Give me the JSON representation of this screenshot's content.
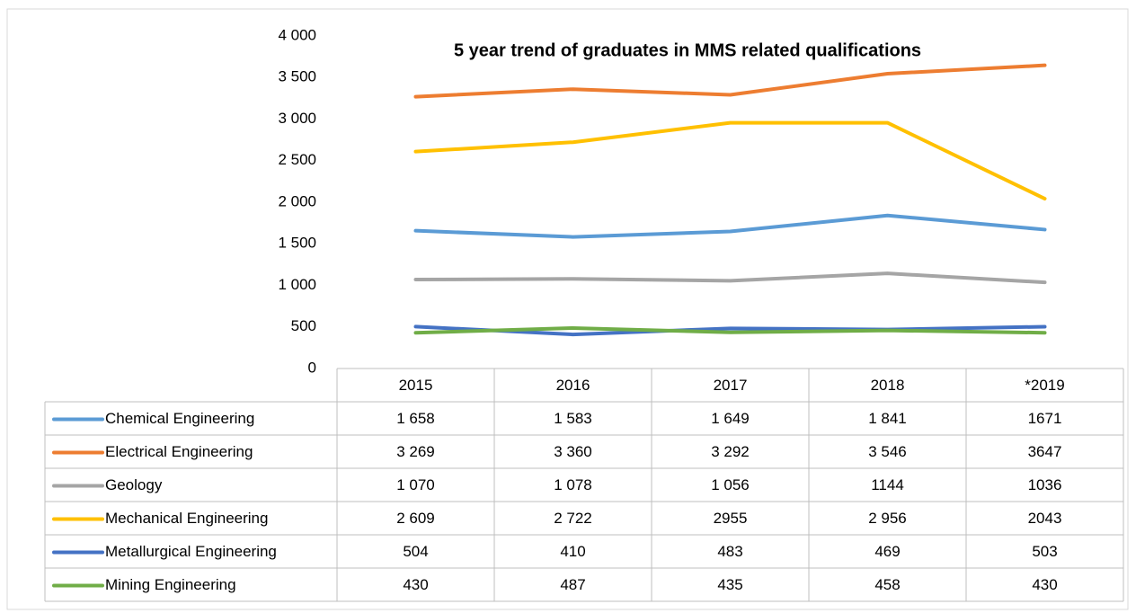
{
  "chart_data": {
    "type": "line",
    "title": "5 year trend of graduates in MMS related qualifications",
    "categories": [
      "2015",
      "2016",
      "2017",
      "2018",
      "*2019"
    ],
    "series": [
      {
        "name": "Chemical Engineering",
        "color": "#5b9bd5",
        "values": [
          1658,
          1583,
          1649,
          1841,
          1671
        ],
        "value_labels": [
          "1 658",
          "1 583",
          "1 649",
          "1 841",
          "1671"
        ]
      },
      {
        "name": "Electrical Engineering",
        "color": "#ed7d31",
        "values": [
          3269,
          3360,
          3292,
          3546,
          3647
        ],
        "value_labels": [
          "3 269",
          "3 360",
          "3 292",
          "3 546",
          "3647"
        ]
      },
      {
        "name": "Geology",
        "color": "#a5a5a5",
        "values": [
          1070,
          1078,
          1056,
          1144,
          1036
        ],
        "value_labels": [
          "1 070",
          "1 078",
          "1 056",
          "1144",
          "1036"
        ]
      },
      {
        "name": "Mechanical Engineering",
        "color": "#ffc000",
        "values": [
          2609,
          2722,
          2955,
          2956,
          2043
        ],
        "value_labels": [
          "2 609",
          "2 722",
          "2955",
          "2 956",
          "2043"
        ]
      },
      {
        "name": "Metallurgical Engineering",
        "color": "#4472c4",
        "values": [
          504,
          410,
          483,
          469,
          503
        ]
      },
      {
        "name": "Mining Engineering",
        "color": "#70ad47",
        "values": [
          430,
          487,
          435,
          458,
          430
        ]
      }
    ],
    "ylim": [
      0,
      4000
    ],
    "yticks": [
      0,
      500,
      {
        "value": 1000,
        "label": "1 000"
      },
      {
        "value": 1500,
        "label": "1 500"
      },
      {
        "value": 2000,
        "label": "2 000"
      },
      {
        "value": 2500,
        "label": "2 500"
      },
      {
        "value": 3000,
        "label": "3 000"
      },
      {
        "value": 3500,
        "label": "3 500"
      },
      {
        "value": 4000,
        "label": "4 000"
      }
    ]
  }
}
